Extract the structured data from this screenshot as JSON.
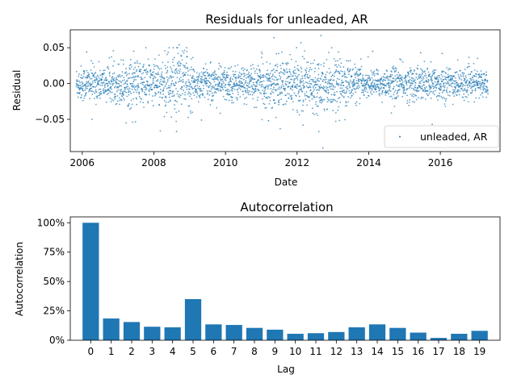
{
  "chart_data": [
    {
      "type": "scatter",
      "title": "Residuals for unleaded, AR",
      "xlabel": "Date",
      "ylabel": "Residual",
      "x_range": [
        "2005-09-01",
        "2017-09-01"
      ],
      "ylim": [
        -0.095,
        0.075
      ],
      "x_ticks": [
        "2006",
        "2008",
        "2010",
        "2012",
        "2014",
        "2016"
      ],
      "y_ticks": [
        {
          "value": 0.05,
          "label": "0.05"
        },
        {
          "value": 0.0,
          "label": "0.00"
        },
        {
          "value": -0.05,
          "label": "−0.05"
        }
      ],
      "legend": {
        "position": "lower-right",
        "entries": [
          "unleaded, AR"
        ]
      },
      "series_color": "#1f77b4",
      "marker": "point",
      "data_start": "2005-11-01",
      "data_end": "2017-05-01",
      "n_points": 2900,
      "typical_spread": 0.012,
      "notable_points": [
        {
          "x": "2008-09-15",
          "y": 0.054
        },
        {
          "x": "2008-08-20",
          "y": -0.067
        },
        {
          "x": "2011-05-10",
          "y": 0.064
        },
        {
          "x": "2012-02-10",
          "y": 0.057
        },
        {
          "x": "2012-09-01",
          "y": 0.067
        },
        {
          "x": "2012-09-20",
          "y": -0.09
        },
        {
          "x": "2012-03-01",
          "y": -0.058
        },
        {
          "x": "2012-08-10",
          "y": -0.067
        },
        {
          "x": "2009-05-01",
          "y": -0.051
        },
        {
          "x": "2006-02-15",
          "y": 0.044
        },
        {
          "x": "2006-04-10",
          "y": -0.05
        },
        {
          "x": "2007-06-10",
          "y": 0.045
        },
        {
          "x": "2014-02-10",
          "y": 0.045
        },
        {
          "x": "2015-06-15",
          "y": 0.043
        },
        {
          "x": "2016-01-20",
          "y": 0.042
        },
        {
          "x": "2015-10-10",
          "y": -0.057
        },
        {
          "x": "2017-01-15",
          "y": 0.035
        },
        {
          "x": "2011-03-15",
          "y": -0.052
        }
      ]
    },
    {
      "type": "bar",
      "title": "Autocorrelation",
      "xlabel": "Lag",
      "ylabel": "Autocorrelation",
      "ylim": [
        0,
        1.05
      ],
      "categories": [
        "0",
        "1",
        "2",
        "3",
        "4",
        "5",
        "6",
        "7",
        "8",
        "9",
        "10",
        "11",
        "12",
        "13",
        "14",
        "15",
        "16",
        "17",
        "18",
        "19"
      ],
      "values": [
        1.0,
        0.185,
        0.155,
        0.115,
        0.11,
        0.35,
        0.135,
        0.13,
        0.105,
        0.09,
        0.055,
        0.06,
        0.07,
        0.11,
        0.135,
        0.105,
        0.065,
        0.02,
        0.055,
        0.08
      ],
      "y_ticks": [
        {
          "value": 0.0,
          "label": "0%"
        },
        {
          "value": 0.25,
          "label": "25%"
        },
        {
          "value": 0.5,
          "label": "50%"
        },
        {
          "value": 0.75,
          "label": "75%"
        },
        {
          "value": 1.0,
          "label": "100%"
        }
      ],
      "bar_color": "#1f77b4"
    }
  ]
}
